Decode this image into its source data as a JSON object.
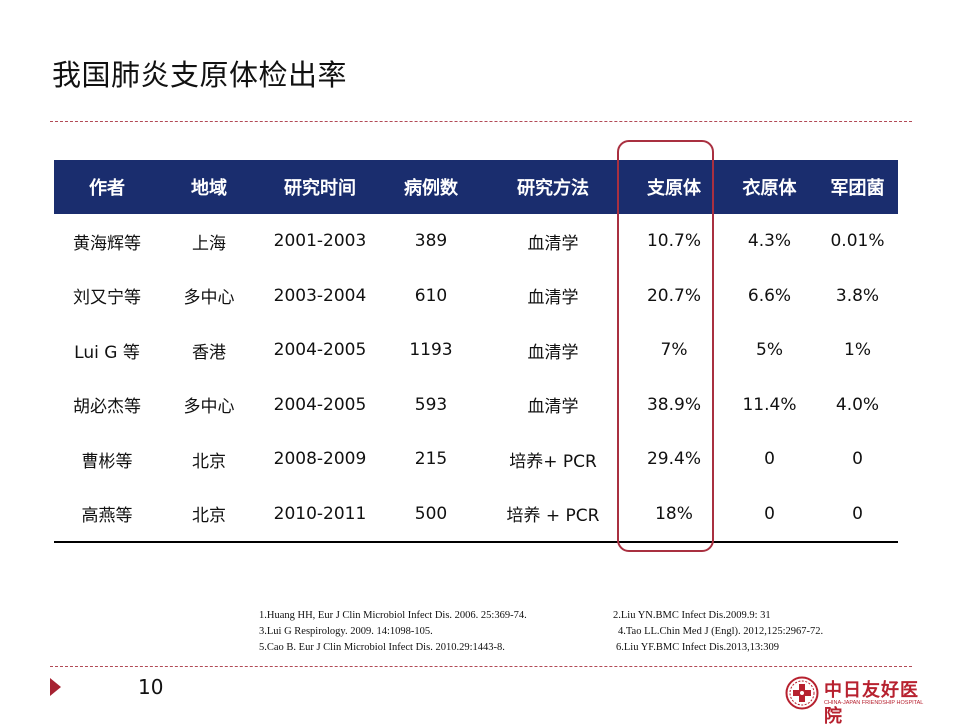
{
  "title": "我国肺炎支原体检出率",
  "table": {
    "headers": [
      "作者",
      "地域",
      "研究时间",
      "病例数",
      "研究方法",
      "支原体",
      "衣原体",
      "军团菌"
    ],
    "rows": [
      [
        "黄海辉等",
        "上海",
        "2001-2003",
        "389",
        "血清学",
        "10.7%",
        "4.3%",
        "0.01%"
      ],
      [
        "刘又宁等",
        "多中心",
        "2003-2004",
        "610",
        "血清学",
        "20.7%",
        "6.6%",
        "3.8%"
      ],
      [
        "Lui G 等",
        "香港",
        "2004-2005",
        "1193",
        "血清学",
        "7%",
        "5%",
        "1%"
      ],
      [
        "胡必杰等",
        "多中心",
        "2004-2005",
        "593",
        "血清学",
        "38.9%",
        "11.4%",
        "4.0%"
      ],
      [
        "曹彬等",
        "北京",
        "2008-2009",
        "215",
        "培养+ PCR",
        "29.4%",
        "0",
        "0"
      ],
      [
        "高燕等",
        "北京",
        "2010-2011",
        "500",
        "培养 + PCR",
        "18%",
        "0",
        "0"
      ]
    ]
  },
  "references": [
    [
      "1.Huang HH, Eur J Clin Microbiol Infect Dis. 2006. 25:369-74.",
      "2.Liu YN.BMC Infect Dis.2009.9: 31"
    ],
    [
      "3.Lui G Respirology. 2009. 14:1098-105.",
      "4.Tao LL.Chin Med J (Engl). 2012,125:2967-72."
    ],
    [
      "5.Cao B. Eur J Clin Microbiol Infect Dis. 2010.29:1443-8.",
      "6.Liu YF.BMC Infect Dis.2013,13:309"
    ]
  ],
  "footer": {
    "page_number": "10",
    "logo_cn": "中日友好医院",
    "logo_en": "CHINA-JAPAN FRIENDSHIP HOSPITAL",
    "logo_icon": "hospital-emblem-icon"
  },
  "colors": {
    "header_bg": "#1a2d6e",
    "accent": "#a93040",
    "logo": "#b7212f"
  }
}
